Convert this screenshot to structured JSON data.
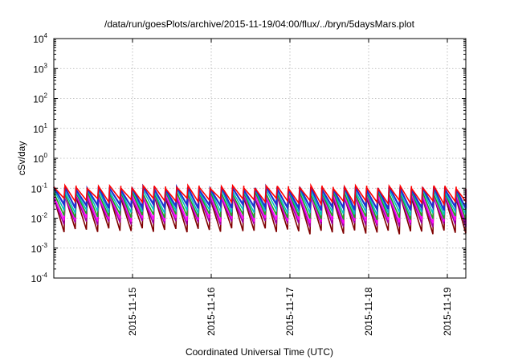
{
  "chart_data": {
    "type": "line",
    "title": "/data/run/goesPlots/archive/2015-11-19/04:00/flux/../bryn/5daysMars.plot",
    "xlabel": "Coordinated Universal Time (UTC)",
    "ylabel": "cSv/day",
    "y_scale": "log",
    "ylim_exponents": [
      -4,
      4
    ],
    "y_tick_base": "10",
    "y_tick_exponents": [
      "4",
      "3",
      "2",
      "1",
      "0",
      "-1",
      "-2",
      "-3",
      "-4"
    ],
    "x_start_date": "2015-11-14",
    "x_end_date": "2015-11-19",
    "x_ticks": [
      "2015-11-15",
      "2015-11-16",
      "2015-11-17",
      "2015-11-18",
      "2015-11-19"
    ],
    "grid": true,
    "legend": "none",
    "pattern": {
      "period_days": 0.142,
      "peak_values": [
        0.11,
        0.1,
        0.085,
        0.07,
        0.06,
        0.05
      ],
      "trough_values": [
        0.04,
        0.025,
        0.017,
        0.012,
        0.009,
        0.007,
        0.004
      ],
      "series_colors": [
        "#ff0000",
        "#2030d0",
        "#00c0c0",
        "#20a020",
        "#ff00ff",
        "#a000a0",
        "#800000"
      ]
    }
  }
}
